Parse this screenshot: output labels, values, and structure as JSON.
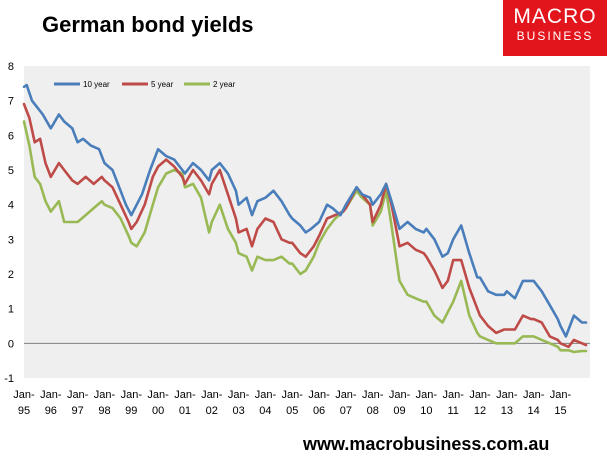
{
  "header": {
    "title": "German bond yields"
  },
  "logo": {
    "line1": "MACRO",
    "line2": "BUSINESS"
  },
  "footer": {
    "url": "www.macrobusiness.com.au"
  },
  "colors": {
    "ten_year": "#4a7ebb",
    "five_year": "#be4b48",
    "two_year": "#98b954",
    "plot_bg": "#efefef",
    "brand": "#e2151c"
  },
  "chart_data": {
    "type": "line",
    "title": "German bond yields",
    "xlabel": "",
    "ylabel": "",
    "ylim": [
      -1,
      8
    ],
    "yticks": [
      8,
      7,
      6,
      5,
      4,
      3,
      2,
      1,
      0,
      -1
    ],
    "xlim": [
      1995.0,
      2016.1
    ],
    "xtick_labels": [
      {
        "month": "Jan-",
        "year": "95"
      },
      {
        "month": "Jan-",
        "year": "96"
      },
      {
        "month": "Jan-",
        "year": "97"
      },
      {
        "month": "Jan-",
        "year": "98"
      },
      {
        "month": "Jan-",
        "year": "99"
      },
      {
        "month": "Jan-",
        "year": "00"
      },
      {
        "month": "Jan-",
        "year": "01"
      },
      {
        "month": "Jan-",
        "year": "02"
      },
      {
        "month": "Jan-",
        "year": "03"
      },
      {
        "month": "Jan-",
        "year": "04"
      },
      {
        "month": "Jan-",
        "year": "05"
      },
      {
        "month": "Jan-",
        "year": "06"
      },
      {
        "month": "Jan-",
        "year": "07"
      },
      {
        "month": "Jan-",
        "year": "08"
      },
      {
        "month": "Jan-",
        "year": "09"
      },
      {
        "month": "Jan-",
        "year": "10"
      },
      {
        "month": "Jan-",
        "year": "11"
      },
      {
        "month": "Jan-",
        "year": "12"
      },
      {
        "month": "Jan-",
        "year": "13"
      },
      {
        "month": "Jan-",
        "year": "14"
      },
      {
        "month": "Jan-",
        "year": "15"
      }
    ],
    "legend_position": "top-left",
    "grid": false,
    "series": [
      {
        "name": "10 year",
        "color": "#4a7ebb",
        "points": [
          [
            1995.0,
            7.4
          ],
          [
            1995.1,
            7.45
          ],
          [
            1995.3,
            7.0
          ],
          [
            1995.5,
            6.8
          ],
          [
            1995.7,
            6.6
          ],
          [
            1996.0,
            6.2
          ],
          [
            1996.3,
            6.6
          ],
          [
            1996.5,
            6.4
          ],
          [
            1996.8,
            6.2
          ],
          [
            1997.0,
            5.8
          ],
          [
            1997.2,
            5.9
          ],
          [
            1997.5,
            5.7
          ],
          [
            1997.8,
            5.6
          ],
          [
            1998.0,
            5.2
          ],
          [
            1998.3,
            5.0
          ],
          [
            1998.6,
            4.4
          ],
          [
            1998.8,
            4.0
          ],
          [
            1999.0,
            3.7
          ],
          [
            1999.2,
            4.0
          ],
          [
            1999.4,
            4.3
          ],
          [
            1999.7,
            5.0
          ],
          [
            2000.0,
            5.6
          ],
          [
            2000.3,
            5.4
          ],
          [
            2000.6,
            5.3
          ],
          [
            2000.9,
            5.0
          ],
          [
            2001.0,
            4.9
          ],
          [
            2001.3,
            5.2
          ],
          [
            2001.6,
            5.0
          ],
          [
            2001.9,
            4.7
          ],
          [
            2002.0,
            5.0
          ],
          [
            2002.3,
            5.2
          ],
          [
            2002.6,
            4.9
          ],
          [
            2002.9,
            4.4
          ],
          [
            2003.0,
            4.0
          ],
          [
            2003.3,
            4.2
          ],
          [
            2003.5,
            3.7
          ],
          [
            2003.7,
            4.1
          ],
          [
            2004.0,
            4.2
          ],
          [
            2004.3,
            4.4
          ],
          [
            2004.6,
            4.1
          ],
          [
            2004.9,
            3.7
          ],
          [
            2005.0,
            3.6
          ],
          [
            2005.3,
            3.4
          ],
          [
            2005.5,
            3.2
          ],
          [
            2005.7,
            3.3
          ],
          [
            2006.0,
            3.5
          ],
          [
            2006.3,
            4.0
          ],
          [
            2006.5,
            3.9
          ],
          [
            2006.8,
            3.7
          ],
          [
            2007.0,
            4.0
          ],
          [
            2007.4,
            4.5
          ],
          [
            2007.6,
            4.3
          ],
          [
            2007.9,
            4.2
          ],
          [
            2008.0,
            4.0
          ],
          [
            2008.3,
            4.3
          ],
          [
            2008.5,
            4.6
          ],
          [
            2008.7,
            4.1
          ],
          [
            2009.0,
            3.3
          ],
          [
            2009.3,
            3.5
          ],
          [
            2009.6,
            3.3
          ],
          [
            2009.9,
            3.2
          ],
          [
            2010.0,
            3.3
          ],
          [
            2010.3,
            3.0
          ],
          [
            2010.6,
            2.5
          ],
          [
            2010.8,
            2.6
          ],
          [
            2011.0,
            3.0
          ],
          [
            2011.3,
            3.4
          ],
          [
            2011.6,
            2.6
          ],
          [
            2011.9,
            1.9
          ],
          [
            2012.0,
            1.9
          ],
          [
            2012.3,
            1.5
          ],
          [
            2012.6,
            1.4
          ],
          [
            2012.9,
            1.4
          ],
          [
            2013.0,
            1.5
          ],
          [
            2013.3,
            1.3
          ],
          [
            2013.6,
            1.8
          ],
          [
            2013.9,
            1.8
          ],
          [
            2014.0,
            1.8
          ],
          [
            2014.3,
            1.5
          ],
          [
            2014.6,
            1.1
          ],
          [
            2014.9,
            0.7
          ],
          [
            2015.0,
            0.5
          ],
          [
            2015.2,
            0.2
          ],
          [
            2015.5,
            0.8
          ],
          [
            2015.8,
            0.6
          ],
          [
            2015.95,
            0.6
          ]
        ]
      },
      {
        "name": "5 year",
        "color": "#be4b48",
        "points": [
          [
            1995.0,
            6.9
          ],
          [
            1995.2,
            6.5
          ],
          [
            1995.4,
            5.8
          ],
          [
            1995.6,
            5.9
          ],
          [
            1995.8,
            5.2
          ],
          [
            1996.0,
            4.8
          ],
          [
            1996.3,
            5.2
          ],
          [
            1996.5,
            5.0
          ],
          [
            1996.8,
            4.7
          ],
          [
            1997.0,
            4.6
          ],
          [
            1997.3,
            4.8
          ],
          [
            1997.6,
            4.6
          ],
          [
            1997.9,
            4.8
          ],
          [
            1998.0,
            4.7
          ],
          [
            1998.3,
            4.5
          ],
          [
            1998.6,
            4.0
          ],
          [
            1998.9,
            3.5
          ],
          [
            1999.0,
            3.3
          ],
          [
            1999.2,
            3.5
          ],
          [
            1999.5,
            4.0
          ],
          [
            1999.8,
            4.8
          ],
          [
            2000.0,
            5.1
          ],
          [
            2000.3,
            5.3
          ],
          [
            2000.6,
            5.1
          ],
          [
            2000.9,
            4.8
          ],
          [
            2001.0,
            4.6
          ],
          [
            2001.3,
            5.0
          ],
          [
            2001.6,
            4.7
          ],
          [
            2001.9,
            4.3
          ],
          [
            2002.0,
            4.6
          ],
          [
            2002.3,
            5.0
          ],
          [
            2002.6,
            4.3
          ],
          [
            2002.9,
            3.6
          ],
          [
            2003.0,
            3.2
          ],
          [
            2003.3,
            3.3
          ],
          [
            2003.5,
            2.8
          ],
          [
            2003.7,
            3.3
          ],
          [
            2004.0,
            3.6
          ],
          [
            2004.3,
            3.5
          ],
          [
            2004.6,
            3.0
          ],
          [
            2004.9,
            2.9
          ],
          [
            2005.0,
            2.9
          ],
          [
            2005.3,
            2.6
          ],
          [
            2005.5,
            2.5
          ],
          [
            2005.8,
            2.8
          ],
          [
            2006.0,
            3.1
          ],
          [
            2006.3,
            3.6
          ],
          [
            2006.6,
            3.7
          ],
          [
            2006.9,
            3.8
          ],
          [
            2007.0,
            3.9
          ],
          [
            2007.4,
            4.5
          ],
          [
            2007.6,
            4.3
          ],
          [
            2007.9,
            4.0
          ],
          [
            2008.0,
            3.5
          ],
          [
            2008.3,
            4.0
          ],
          [
            2008.5,
            4.6
          ],
          [
            2008.7,
            4.0
          ],
          [
            2009.0,
            2.8
          ],
          [
            2009.3,
            2.9
          ],
          [
            2009.6,
            2.7
          ],
          [
            2009.9,
            2.6
          ],
          [
            2010.0,
            2.5
          ],
          [
            2010.3,
            2.1
          ],
          [
            2010.6,
            1.6
          ],
          [
            2010.8,
            1.8
          ],
          [
            2011.0,
            2.4
          ],
          [
            2011.3,
            2.4
          ],
          [
            2011.6,
            1.6
          ],
          [
            2011.9,
            1.0
          ],
          [
            2012.0,
            0.8
          ],
          [
            2012.3,
            0.5
          ],
          [
            2012.6,
            0.3
          ],
          [
            2012.9,
            0.4
          ],
          [
            2013.0,
            0.4
          ],
          [
            2013.3,
            0.4
          ],
          [
            2013.6,
            0.8
          ],
          [
            2013.9,
            0.7
          ],
          [
            2014.0,
            0.7
          ],
          [
            2014.3,
            0.6
          ],
          [
            2014.6,
            0.2
          ],
          [
            2014.9,
            0.1
          ],
          [
            2015.0,
            0.0
          ],
          [
            2015.3,
            -0.1
          ],
          [
            2015.5,
            0.1
          ],
          [
            2015.8,
            0.0
          ],
          [
            2015.95,
            -0.05
          ]
        ]
      },
      {
        "name": "2 year",
        "color": "#98b954",
        "points": [
          [
            1995.0,
            6.4
          ],
          [
            1995.2,
            5.7
          ],
          [
            1995.4,
            4.8
          ],
          [
            1995.6,
            4.6
          ],
          [
            1995.8,
            4.1
          ],
          [
            1996.0,
            3.8
          ],
          [
            1996.3,
            4.1
          ],
          [
            1996.5,
            3.5
          ],
          [
            1996.8,
            3.5
          ],
          [
            1997.0,
            3.5
          ],
          [
            1997.3,
            3.7
          ],
          [
            1997.6,
            3.9
          ],
          [
            1997.9,
            4.1
          ],
          [
            1998.0,
            4.0
          ],
          [
            1998.3,
            3.9
          ],
          [
            1998.6,
            3.6
          ],
          [
            1998.9,
            3.1
          ],
          [
            1999.0,
            2.9
          ],
          [
            1999.2,
            2.8
          ],
          [
            1999.5,
            3.2
          ],
          [
            1999.8,
            4.0
          ],
          [
            2000.0,
            4.5
          ],
          [
            2000.3,
            4.9
          ],
          [
            2000.6,
            5.0
          ],
          [
            2000.9,
            4.9
          ],
          [
            2001.0,
            4.5
          ],
          [
            2001.3,
            4.6
          ],
          [
            2001.6,
            4.2
          ],
          [
            2001.9,
            3.2
          ],
          [
            2002.0,
            3.5
          ],
          [
            2002.3,
            4.0
          ],
          [
            2002.6,
            3.3
          ],
          [
            2002.9,
            2.9
          ],
          [
            2003.0,
            2.6
          ],
          [
            2003.3,
            2.5
          ],
          [
            2003.5,
            2.1
          ],
          [
            2003.7,
            2.5
          ],
          [
            2004.0,
            2.4
          ],
          [
            2004.3,
            2.4
          ],
          [
            2004.6,
            2.5
          ],
          [
            2004.9,
            2.3
          ],
          [
            2005.0,
            2.3
          ],
          [
            2005.3,
            2.0
          ],
          [
            2005.5,
            2.1
          ],
          [
            2005.8,
            2.5
          ],
          [
            2006.0,
            2.9
          ],
          [
            2006.3,
            3.3
          ],
          [
            2006.6,
            3.6
          ],
          [
            2006.9,
            3.8
          ],
          [
            2007.0,
            3.9
          ],
          [
            2007.4,
            4.4
          ],
          [
            2007.6,
            4.2
          ],
          [
            2007.9,
            4.0
          ],
          [
            2008.0,
            3.4
          ],
          [
            2008.3,
            3.8
          ],
          [
            2008.5,
            4.4
          ],
          [
            2008.7,
            3.4
          ],
          [
            2009.0,
            1.8
          ],
          [
            2009.3,
            1.4
          ],
          [
            2009.6,
            1.3
          ],
          [
            2009.9,
            1.2
          ],
          [
            2010.0,
            1.2
          ],
          [
            2010.3,
            0.8
          ],
          [
            2010.6,
            0.6
          ],
          [
            2010.8,
            0.9
          ],
          [
            2011.0,
            1.2
          ],
          [
            2011.3,
            1.8
          ],
          [
            2011.6,
            0.8
          ],
          [
            2011.9,
            0.3
          ],
          [
            2012.0,
            0.2
          ],
          [
            2012.3,
            0.1
          ],
          [
            2012.6,
            0.0
          ],
          [
            2012.9,
            0.0
          ],
          [
            2013.0,
            0.0
          ],
          [
            2013.3,
            0.0
          ],
          [
            2013.6,
            0.2
          ],
          [
            2013.9,
            0.2
          ],
          [
            2014.0,
            0.2
          ],
          [
            2014.3,
            0.1
          ],
          [
            2014.6,
            0.0
          ],
          [
            2014.9,
            -0.1
          ],
          [
            2015.0,
            -0.2
          ],
          [
            2015.3,
            -0.2
          ],
          [
            2015.5,
            -0.25
          ],
          [
            2015.8,
            -0.22
          ],
          [
            2015.95,
            -0.22
          ]
        ]
      }
    ]
  }
}
